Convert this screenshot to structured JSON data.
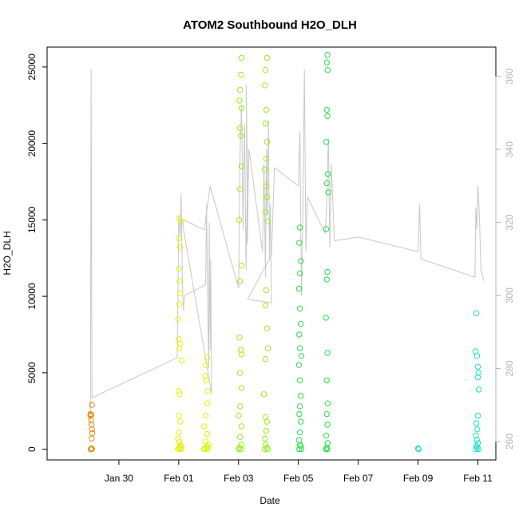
{
  "chart_data": {
    "type": "scatter",
    "title": "ATOM2 Southbound H2O_DLH",
    "xlabel": "Date",
    "ylabel": "H2O_DLH",
    "x_origin": "Jan 30",
    "xlim_days": [
      -2.4,
      12.6
    ],
    "ylim": [
      -700,
      26300
    ],
    "y2lim": [
      255,
      368
    ],
    "x_ticks": [
      {
        "day": 0,
        "label": "Jan 30"
      },
      {
        "day": 2,
        "label": "Feb 01"
      },
      {
        "day": 4,
        "label": "Feb 03"
      },
      {
        "day": 6,
        "label": "Feb 05"
      },
      {
        "day": 8,
        "label": "Feb 07"
      },
      {
        "day": 10,
        "label": "Feb 09"
      },
      {
        "day": 12,
        "label": "Feb 11"
      }
    ],
    "y_ticks": [
      0,
      5000,
      10000,
      15000,
      20000,
      25000
    ],
    "y2_ticks": [
      260,
      280,
      300,
      320,
      340,
      360
    ],
    "grid": false,
    "legend": "none",
    "series": [
      {
        "color": "#e8890a",
        "points": [
          [
            -0.95,
            2300
          ],
          [
            -0.93,
            2250
          ],
          [
            -0.9,
            2900
          ],
          [
            -0.92,
            1600
          ],
          [
            -0.9,
            1300
          ],
          [
            -0.89,
            1050
          ],
          [
            -0.93,
            1900
          ],
          [
            -0.91,
            700
          ],
          [
            -0.94,
            0
          ],
          [
            -0.92,
            50
          ],
          [
            -0.9,
            20
          ],
          [
            -0.95,
            2200
          ]
        ]
      },
      {
        "color": "#e6f00a",
        "points": [
          [
            2.0,
            15100
          ],
          [
            2.08,
            14900
          ],
          [
            2.0,
            13800
          ],
          [
            2.05,
            13200
          ],
          [
            2.0,
            11800
          ],
          [
            2.03,
            11000
          ],
          [
            2.05,
            10200
          ],
          [
            2.02,
            9500
          ],
          [
            1.98,
            8500
          ],
          [
            2.0,
            7200
          ],
          [
            2.05,
            6900
          ],
          [
            2.02,
            6600
          ],
          [
            2.1,
            5800
          ],
          [
            2.0,
            3800
          ],
          [
            2.03,
            3600
          ],
          [
            2.0,
            2200
          ],
          [
            2.05,
            1800
          ],
          [
            2.0,
            1100
          ],
          [
            1.98,
            700
          ],
          [
            2.02,
            500
          ],
          [
            2.05,
            250
          ],
          [
            2.0,
            100
          ],
          [
            2.03,
            50
          ],
          [
            2.08,
            0
          ],
          [
            1.97,
            0
          ],
          [
            2.1,
            150
          ]
        ]
      },
      {
        "color": "#d4f80a",
        "points": [
          [
            2.95,
            6000
          ],
          [
            2.9,
            5500
          ],
          [
            2.88,
            4800
          ],
          [
            2.92,
            4500
          ],
          [
            2.97,
            3800
          ],
          [
            2.95,
            3000
          ],
          [
            2.9,
            2200
          ],
          [
            2.85,
            1500
          ],
          [
            2.95,
            1000
          ],
          [
            2.9,
            500
          ],
          [
            2.93,
            200
          ],
          [
            2.97,
            100
          ],
          [
            2.88,
            50
          ],
          [
            2.95,
            0
          ],
          [
            2.85,
            0
          ],
          [
            3.0,
            300
          ]
        ]
      },
      {
        "color": "#96f01a",
        "points": [
          [
            4.1,
            25600
          ],
          [
            4.08,
            24500
          ],
          [
            4.05,
            23500
          ],
          [
            4.03,
            22800
          ],
          [
            4.1,
            22300
          ],
          [
            4.05,
            21000
          ],
          [
            4.08,
            20500
          ],
          [
            4.1,
            18500
          ],
          [
            4.05,
            17000
          ],
          [
            4.02,
            15000
          ],
          [
            4.1,
            12000
          ],
          [
            4.05,
            11000
          ],
          [
            4.03,
            7300
          ],
          [
            4.08,
            6500
          ],
          [
            4.1,
            6200
          ],
          [
            4.05,
            5000
          ],
          [
            4.1,
            4000
          ],
          [
            4.05,
            2800
          ],
          [
            4.0,
            2200
          ],
          [
            4.1,
            1500
          ],
          [
            4.05,
            800
          ],
          [
            4.1,
            300
          ],
          [
            4.03,
            100
          ],
          [
            4.08,
            0
          ],
          [
            4.0,
            0
          ],
          [
            4.95,
            25600
          ],
          [
            4.9,
            24800
          ],
          [
            4.88,
            23800
          ],
          [
            4.93,
            22200
          ],
          [
            4.9,
            21300
          ],
          [
            4.95,
            20100
          ],
          [
            4.92,
            19000
          ],
          [
            4.87,
            18300
          ],
          [
            4.93,
            17200
          ],
          [
            4.95,
            16500
          ],
          [
            4.9,
            15500
          ],
          [
            4.98,
            14900
          ],
          [
            4.92,
            10400
          ],
          [
            4.9,
            9400
          ],
          [
            4.95,
            7900
          ],
          [
            4.98,
            6600
          ],
          [
            4.9,
            5900
          ],
          [
            4.85,
            3600
          ],
          [
            4.9,
            2100
          ],
          [
            4.95,
            1800
          ],
          [
            4.92,
            1200
          ],
          [
            4.88,
            700
          ],
          [
            4.9,
            300
          ],
          [
            4.95,
            100
          ],
          [
            4.98,
            0
          ],
          [
            4.87,
            0
          ]
        ]
      },
      {
        "color": "#28e04a",
        "points": [
          [
            6.05,
            14500
          ],
          [
            6.03,
            13500
          ],
          [
            6.08,
            12300
          ],
          [
            6.05,
            11500
          ],
          [
            6.02,
            10500
          ],
          [
            6.05,
            9200
          ],
          [
            6.08,
            8200
          ],
          [
            6.03,
            7500
          ],
          [
            6.05,
            6600
          ],
          [
            6.1,
            6100
          ],
          [
            6.02,
            5500
          ],
          [
            6.05,
            4500
          ],
          [
            6.08,
            3500
          ],
          [
            6.05,
            2800
          ],
          [
            6.03,
            2300
          ],
          [
            6.08,
            1800
          ],
          [
            6.05,
            1100
          ],
          [
            6.02,
            600
          ],
          [
            6.05,
            300
          ],
          [
            6.08,
            200
          ],
          [
            6.03,
            0
          ],
          [
            6.1,
            0
          ],
          [
            6.97,
            25800
          ],
          [
            6.95,
            25300
          ],
          [
            6.98,
            24800
          ],
          [
            6.95,
            22200
          ],
          [
            6.97,
            21800
          ],
          [
            6.93,
            20100
          ],
          [
            6.98,
            18000
          ],
          [
            6.95,
            17400
          ],
          [
            7.0,
            16800
          ],
          [
            6.93,
            14400
          ],
          [
            6.97,
            11600
          ],
          [
            6.95,
            11100
          ],
          [
            6.92,
            8600
          ],
          [
            6.97,
            6300
          ],
          [
            6.95,
            4500
          ],
          [
            6.98,
            3000
          ],
          [
            6.95,
            2300
          ],
          [
            6.97,
            1600
          ],
          [
            6.93,
            900
          ],
          [
            6.98,
            400
          ],
          [
            6.95,
            100
          ],
          [
            6.97,
            0
          ],
          [
            6.92,
            0
          ]
        ]
      },
      {
        "color": "#1ae0c0",
        "points": [
          [
            10.0,
            50
          ],
          [
            10.02,
            0
          ],
          [
            11.95,
            8900
          ],
          [
            11.92,
            6400
          ],
          [
            11.97,
            6100
          ],
          [
            12.0,
            5400
          ],
          [
            12.02,
            5000
          ],
          [
            12.0,
            4700
          ],
          [
            12.03,
            3900
          ],
          [
            12.0,
            2200
          ],
          [
            11.95,
            1700
          ],
          [
            11.98,
            1300
          ],
          [
            11.93,
            900
          ],
          [
            11.97,
            600
          ],
          [
            12.0,
            400
          ],
          [
            11.95,
            200
          ],
          [
            11.98,
            100
          ],
          [
            11.93,
            0
          ],
          [
            12.02,
            0
          ]
        ]
      }
    ],
    "line2": {
      "color": "#c8c8c8",
      "points": [
        [
          -0.95,
          265
        ],
        [
          -0.93,
          362
        ],
        [
          -0.9,
          272
        ],
        [
          1.95,
          283
        ],
        [
          2.0,
          322
        ],
        [
          2.05,
          316
        ],
        [
          2.08,
          328
        ],
        [
          2.1,
          318
        ],
        [
          2.12,
          305
        ],
        [
          2.15,
          296
        ],
        [
          2.2,
          300
        ],
        [
          2.9,
          303
        ],
        [
          2.93,
          325
        ],
        [
          2.97,
          297
        ],
        [
          3.0,
          280
        ],
        [
          3.02,
          320
        ],
        [
          3.05,
          285
        ],
        [
          3.07,
          310
        ],
        [
          3.1,
          273
        ],
        [
          2.1,
          321
        ],
        [
          2.85,
          318
        ],
        [
          3.05,
          330
        ],
        [
          4.0,
          302
        ],
        [
          4.05,
          340
        ],
        [
          4.1,
          352
        ],
        [
          4.15,
          318
        ],
        [
          4.2,
          347
        ],
        [
          4.25,
          307
        ],
        [
          4.3,
          335
        ],
        [
          4.25,
          358
        ],
        [
          4.3,
          314
        ],
        [
          4.32,
          330
        ],
        [
          4.35,
          340
        ],
        [
          4.8,
          312
        ],
        [
          4.85,
          336
        ],
        [
          4.9,
          305
        ],
        [
          4.93,
          340
        ],
        [
          4.95,
          322
        ],
        [
          5.0,
          348
        ],
        [
          5.03,
          310
        ],
        [
          5.06,
          325
        ],
        [
          5.1,
          298
        ],
        [
          4.3,
          299
        ],
        [
          5.1,
          311
        ],
        [
          5.2,
          335
        ],
        [
          6.0,
          330
        ],
        [
          6.05,
          345
        ],
        [
          6.1,
          300
        ],
        [
          6.15,
          322
        ],
        [
          6.2,
          362
        ],
        [
          6.25,
          312
        ],
        [
          6.3,
          327
        ],
        [
          6.9,
          317
        ],
        [
          6.95,
          327
        ],
        [
          7.0,
          343
        ],
        [
          7.05,
          313
        ],
        [
          7.1,
          336
        ],
        [
          7.2,
          315
        ],
        [
          8.0,
          316
        ],
        [
          10.0,
          312
        ],
        [
          10.05,
          325
        ],
        [
          10.1,
          310
        ],
        [
          11.9,
          305
        ],
        [
          11.93,
          324
        ],
        [
          11.97,
          318
        ],
        [
          12.0,
          330
        ],
        [
          12.05,
          322
        ],
        [
          12.1,
          307
        ],
        [
          12.2,
          304
        ]
      ]
    }
  }
}
